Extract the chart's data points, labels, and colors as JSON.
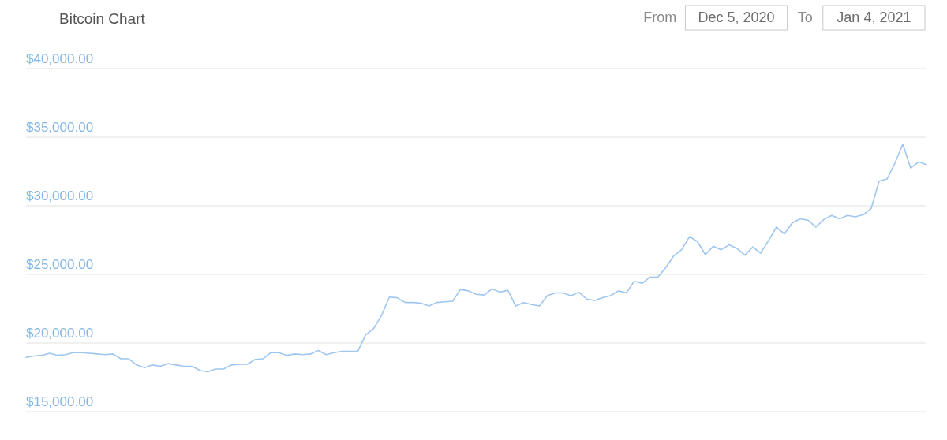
{
  "chart_data": {
    "type": "line",
    "title": "Bitcoin Chart",
    "annotations": [
      "From",
      "Dec 5, 2020",
      "To",
      "Jan 4, 2021"
    ],
    "categories": [
      null,
      null,
      null,
      null,
      null,
      null,
      null,
      null,
      null,
      null,
      null,
      null,
      null,
      null,
      null,
      null,
      null,
      null,
      null,
      null,
      null,
      null,
      null,
      null,
      null,
      null,
      null,
      null,
      null,
      null,
      null,
      null,
      null,
      null,
      null,
      null,
      null,
      null,
      null,
      null,
      null,
      null,
      null,
      null,
      null,
      null,
      null,
      null,
      null,
      null,
      null,
      null,
      null,
      null,
      null,
      null,
      null,
      null,
      null,
      null,
      null,
      null,
      null,
      null,
      null,
      null,
      null,
      null,
      null,
      null,
      null,
      null,
      null,
      null,
      null,
      null,
      null,
      null,
      null,
      null,
      null,
      null,
      null,
      null,
      null,
      null,
      null,
      null,
      null,
      null,
      null,
      null,
      null,
      null,
      null,
      null,
      null,
      null,
      null,
      null,
      null,
      null,
      null,
      null,
      null,
      null,
      null,
      null,
      null,
      null,
      null,
      null,
      null,
      null,
      null
    ],
    "values": [
      18950,
      19050,
      19100,
      19250,
      19100,
      19150,
      19300,
      19300,
      19250,
      19200,
      19150,
      19200,
      18850,
      18850,
      18400,
      18200,
      18400,
      18300,
      18500,
      18400,
      18300,
      18300,
      18000,
      17900,
      18100,
      18100,
      18400,
      18450,
      18450,
      18800,
      18850,
      19300,
      19300,
      19100,
      19200,
      19150,
      19200,
      19450,
      19150,
      19300,
      19400,
      19400,
      19400,
      20600,
      21050,
      22000,
      23350,
      23300,
      22950,
      22950,
      22900,
      22700,
      22950,
      23000,
      23050,
      23900,
      23800,
      23550,
      23500,
      23950,
      23700,
      23850,
      22700,
      22950,
      22800,
      22700,
      23450,
      23650,
      23650,
      23450,
      23700,
      23200,
      23100,
      23300,
      23450,
      23800,
      23650,
      24500,
      24350,
      24800,
      24800,
      25500,
      26350,
      26800,
      27750,
      27400,
      26450,
      27050,
      26800,
      27150,
      26900,
      26400,
      27000,
      26550,
      27450,
      28450,
      27950,
      28750,
      29050,
      28950,
      28450,
      29000,
      29300,
      29050,
      29300,
      29200,
      29350,
      29800,
      31800,
      31950,
      33100,
      34500,
      32750,
      33200,
      33000
    ],
    "color": "#9fc6ee",
    "ylim": [
      15000,
      40000
    ],
    "yticks": [
      {
        "value": 15000,
        "label": "$15,000.00"
      },
      {
        "value": 20000,
        "label": "$20,000.00"
      },
      {
        "value": 25000,
        "label": "$25,000.00"
      },
      {
        "value": 30000,
        "label": "$30,000.00"
      },
      {
        "value": 35000,
        "label": "$35,000.00"
      },
      {
        "value": 40000,
        "label": "$40,000.00"
      }
    ],
    "grid": "y",
    "tick_labels": "y"
  }
}
